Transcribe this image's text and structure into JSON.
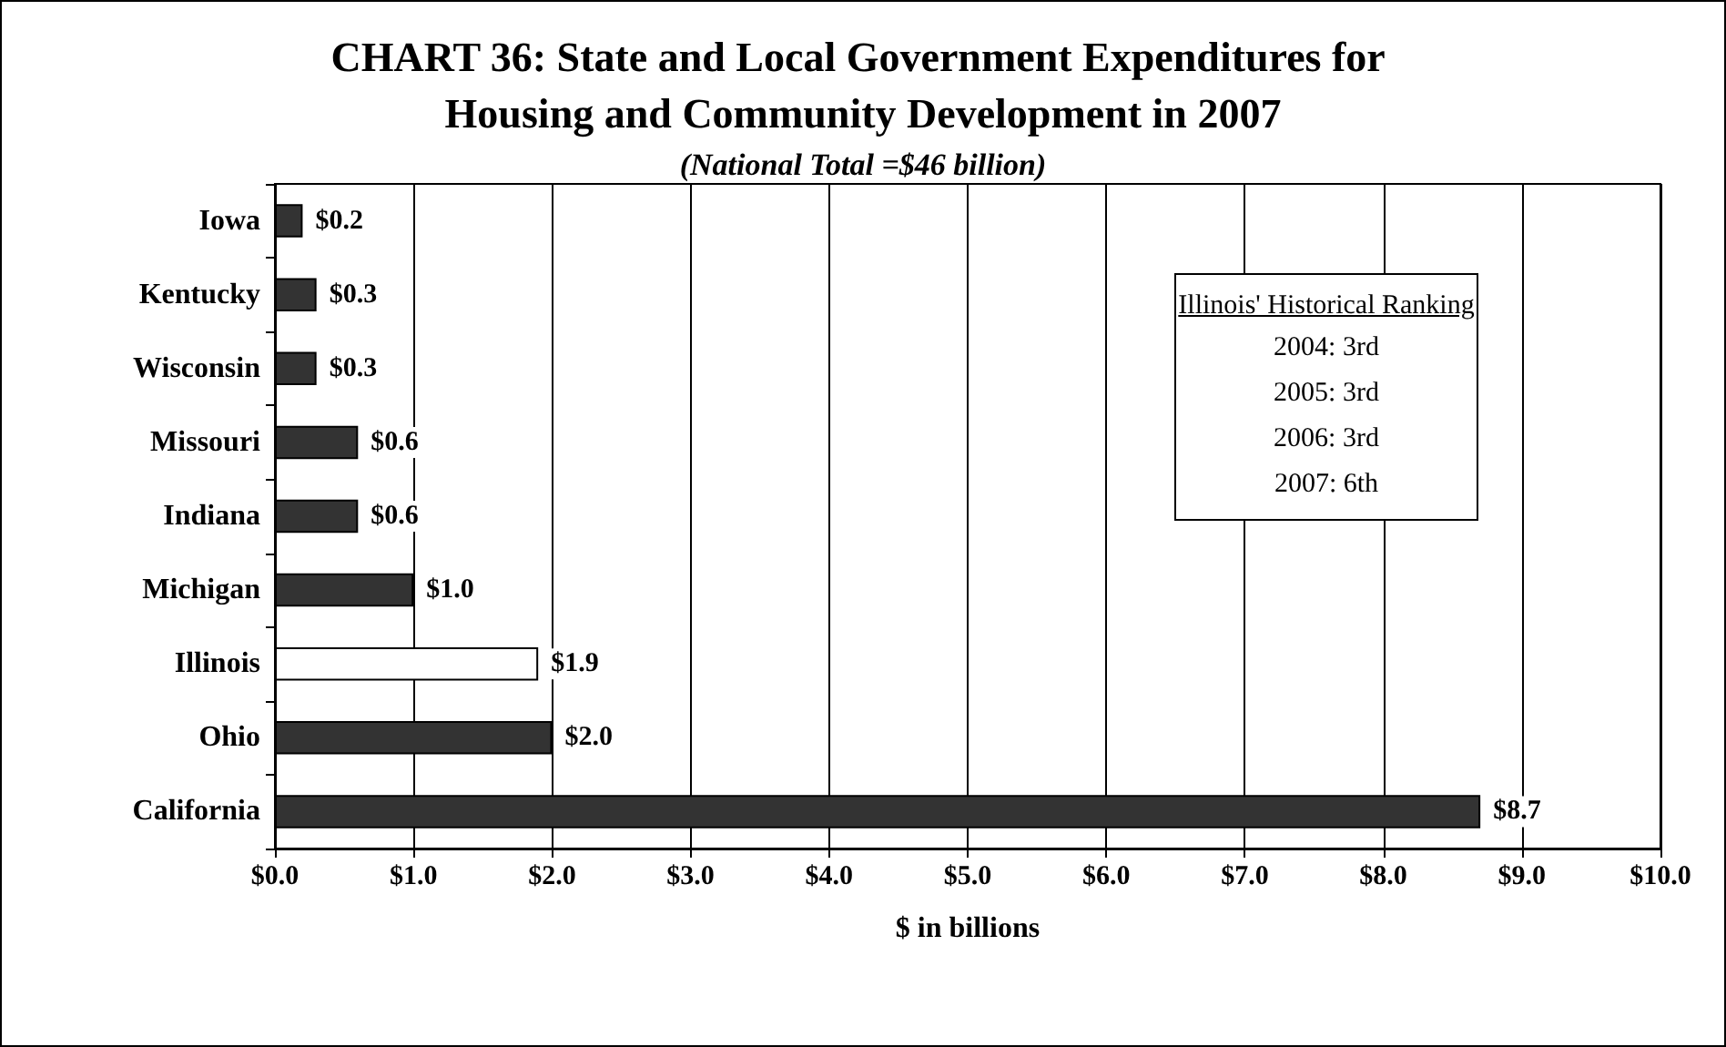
{
  "chart_data": {
    "type": "bar",
    "orientation": "horizontal",
    "title": "CHART 36: State and Local Government Expenditures for Housing and Community Development in 2007",
    "subtitle": "(National Total =$46 billion)",
    "xlabel": "$ in billions",
    "categories": [
      "Iowa",
      "Kentucky",
      "Wisconsin",
      "Missouri",
      "Indiana",
      "Michigan",
      "Illinois",
      "Ohio",
      "California"
    ],
    "values": [
      0.2,
      0.3,
      0.3,
      0.6,
      0.6,
      1.0,
      1.9,
      2.0,
      8.7
    ],
    "value_labels": [
      "$0.2",
      "$0.3",
      "$0.3",
      "$0.6",
      "$0.6",
      "$1.0",
      "$1.9",
      "$2.0",
      "$8.7"
    ],
    "colors": [
      "#333333",
      "#333333",
      "#333333",
      "#333333",
      "#333333",
      "#333333",
      "#ffffff",
      "#333333",
      "#333333"
    ],
    "xlim": [
      0,
      10
    ],
    "xticks": [
      {
        "value": 0,
        "label": "$0.0"
      },
      {
        "value": 1,
        "label": "$1.0"
      },
      {
        "value": 2,
        "label": "$2.0"
      },
      {
        "value": 3,
        "label": "$3.0"
      },
      {
        "value": 4,
        "label": "$4.0"
      },
      {
        "value": 5,
        "label": "$5.0"
      },
      {
        "value": 6,
        "label": "$6.0"
      },
      {
        "value": 7,
        "label": "$7.0"
      },
      {
        "value": 8,
        "label": "$8.0"
      },
      {
        "value": 9,
        "label": "$9.0"
      },
      {
        "value": 10,
        "label": "$10.0"
      }
    ],
    "grid": "x",
    "annotations": [
      "Illinois' Historical Ranking",
      "2004: 3rd",
      "2005: 3rd",
      "2006: 3rd",
      "2007: 6th"
    ]
  }
}
